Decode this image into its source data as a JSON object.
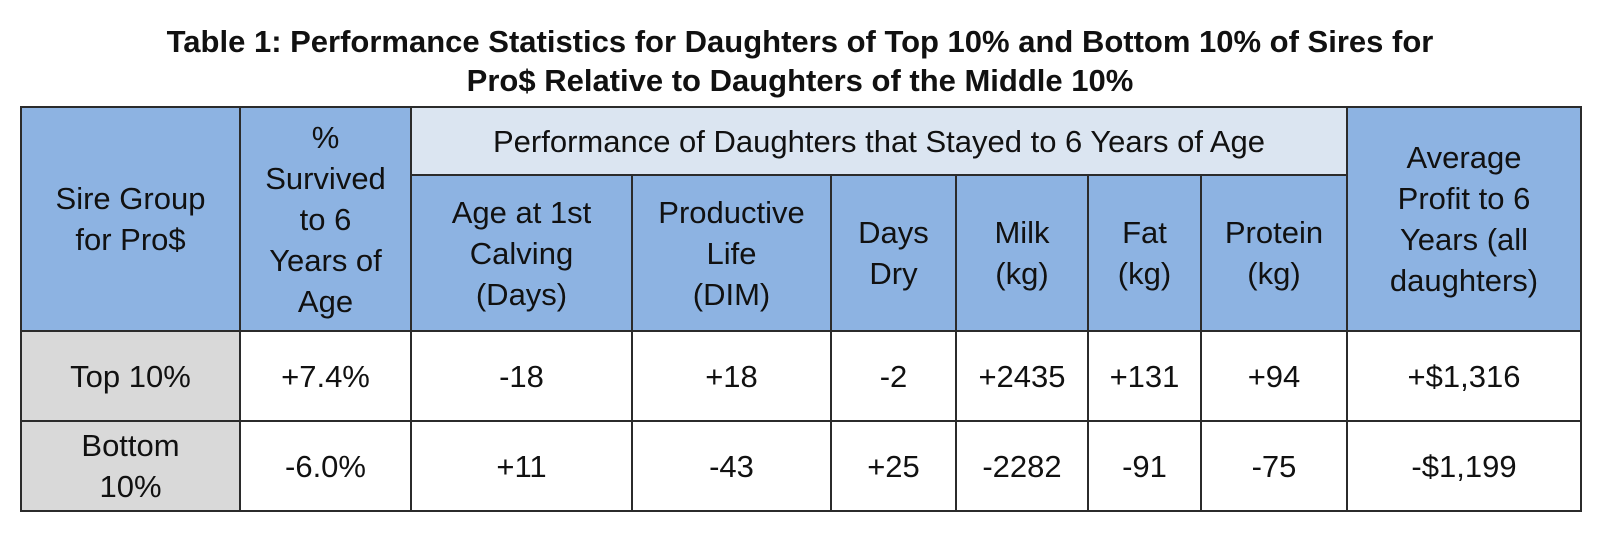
{
  "title": {
    "line1": "Table 1: Performance Statistics for Daughters of Top 10% and Bottom 10% of Sires for",
    "line2": "Pro$ Relative to Daughters of the Middle 10%"
  },
  "header": {
    "sire_group": [
      "Sire Group",
      "for Pro$"
    ],
    "survived": [
      "%",
      "Survived",
      "to 6",
      "Years of",
      "Age"
    ],
    "performance_group": "Performance of Daughters that Stayed to 6 Years of Age",
    "age_first_calving": [
      "Age at 1st",
      "Calving",
      "(Days)"
    ],
    "productive_life": [
      "Productive",
      "Life",
      "(DIM)"
    ],
    "days_dry": [
      "Days",
      "Dry"
    ],
    "milk": [
      "Milk",
      "(kg)"
    ],
    "fat": [
      "Fat",
      "(kg)"
    ],
    "protein": [
      "Protein",
      "(kg)"
    ],
    "average_profit": [
      "Average",
      "Profit to 6",
      "Years (all",
      "daughters)"
    ]
  },
  "rows": [
    {
      "label": [
        "Top 10%"
      ],
      "survived": "+7.4%",
      "age_first_calving": "-18",
      "productive_life": "+18",
      "days_dry": "-2",
      "milk": "+2435",
      "fat": "+131",
      "protein": "+94",
      "average_profit": "+$1,316"
    },
    {
      "label": [
        "Bottom",
        "10%"
      ],
      "survived": "-6.0%",
      "age_first_calving": "+11",
      "productive_life": "-43",
      "days_dry": "+25",
      "milk": "-2282",
      "fat": "-91",
      "protein": "-75",
      "average_profit": "-$1,199"
    }
  ],
  "colors": {
    "header_fill": "#8db3e2",
    "group_header_fill": "#dbe5f1",
    "row_label_fill": "#d9d9d9",
    "border": "#2b2b2b"
  }
}
